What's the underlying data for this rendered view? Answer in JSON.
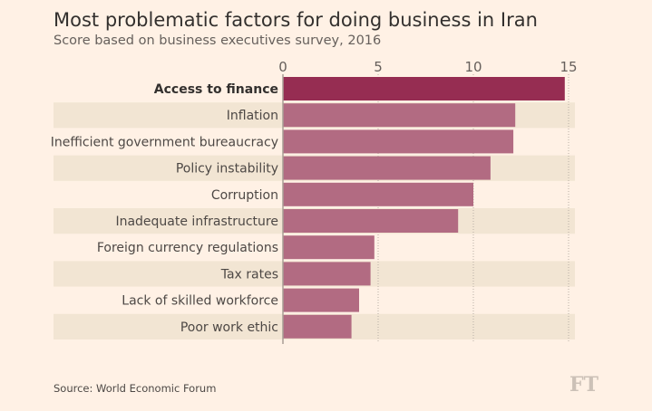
{
  "title": "Most problematic factors for doing business in Iran",
  "subtitle": "Score based on business executives survey, 2016",
  "source": "Source: World Economic Forum",
  "logo": "FT",
  "chart_data": {
    "type": "bar",
    "orientation": "horizontal",
    "title": "Most problematic factors for doing business in Iran",
    "subtitle": "Score based on business executives survey, 2016",
    "categories": [
      "Access to finance",
      "Inflation",
      "Inefficient government bureaucracy",
      "Policy instability",
      "Corruption",
      "Inadequate infrastructure",
      "Foreign currency regulations",
      "Tax rates",
      "Lack of skilled workforce",
      "Poor work ethic"
    ],
    "values": [
      14.8,
      12.2,
      12.1,
      10.9,
      10.0,
      9.2,
      4.8,
      4.6,
      4.0,
      3.6
    ],
    "xlim": [
      0,
      15
    ],
    "xticks": [
      0,
      5,
      10,
      15
    ],
    "grid": true,
    "highlight": "Access to finance",
    "colors": {
      "highlight": "#962d52",
      "bar": "#b26b82",
      "band": "#f2e5d3",
      "grid": "#b8aea5"
    }
  }
}
